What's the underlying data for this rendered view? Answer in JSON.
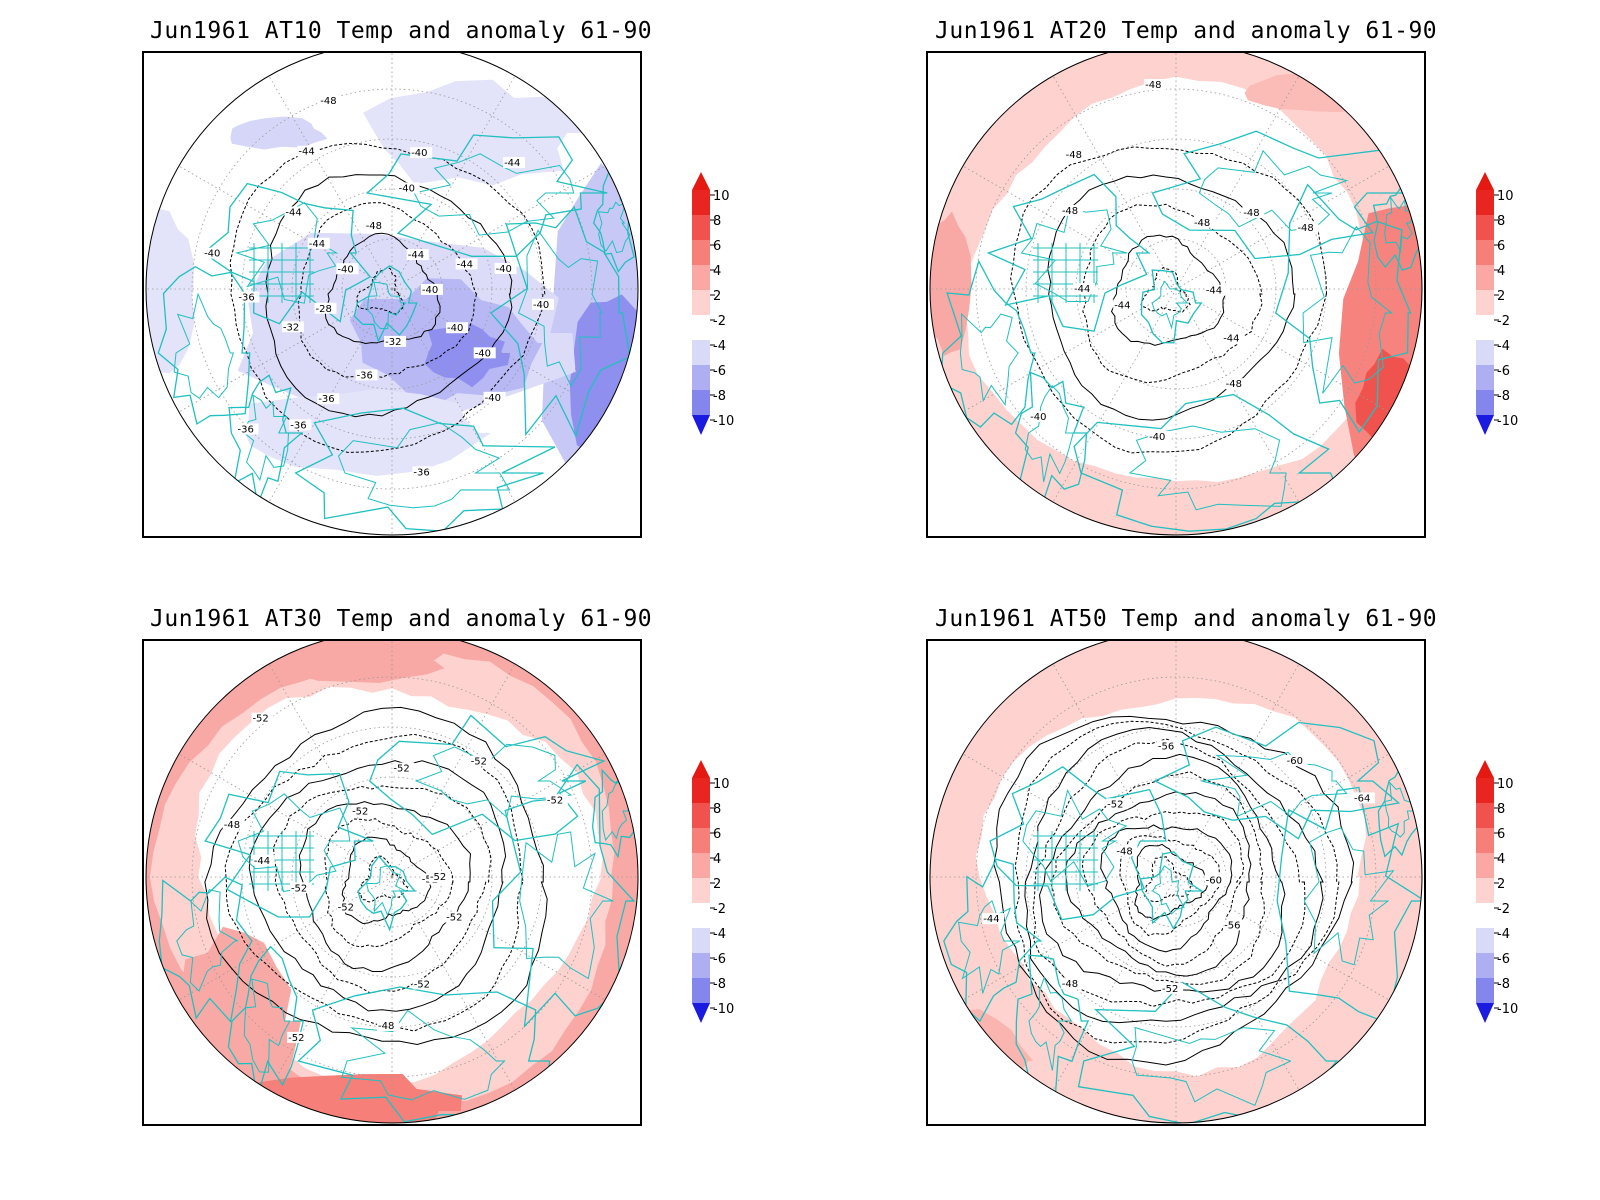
{
  "panels": [
    {
      "title": "Jun1961 AT10 Temp and anomaly 61-90",
      "contour_labels": [
        "-40",
        "-40",
        "-40",
        "-40",
        "-36",
        "-32",
        "-36",
        "-36",
        "-36",
        "-36",
        "-28",
        "-32",
        "-36",
        "-40",
        "-40",
        "-44",
        "-44",
        "-44",
        "-48",
        "-48",
        "-40",
        "-40",
        "-44",
        "-44",
        "-44",
        "-40",
        "-40"
      ],
      "shading": "cool"
    },
    {
      "title": "Jun1961 AT20 Temp and anomaly 61-90",
      "contour_labels": [
        "-44",
        "-44",
        "-48",
        "-40",
        "-40",
        "-44",
        "-44",
        "-48",
        "-48",
        "-48",
        "-48",
        "-48",
        "-48"
      ],
      "shading": "warm-edge"
    },
    {
      "title": "Jun1961 AT30 Temp and anomaly 61-90",
      "contour_labels": [
        "-52",
        "-52",
        "-52",
        "-48",
        "-52",
        "-52",
        "-52",
        "-44",
        "-48",
        "-52",
        "-52",
        "-52",
        "-52",
        "-52",
        "-52"
      ],
      "shading": "warm-ring"
    },
    {
      "title": "Jun1961 AT50 Temp and anomaly 61-90",
      "contour_labels": [
        "-60",
        "-56",
        "-52",
        "-48",
        "-44",
        "-48",
        "-52",
        "-56",
        "-60",
        "-64"
      ],
      "shading": "warm-ring-light"
    }
  ],
  "colorbar": {
    "labels": [
      "10",
      "8",
      "6",
      "4",
      "2",
      "-2",
      "-4",
      "-6",
      "-8",
      "-10"
    ],
    "colors": [
      "#e8251f",
      "#f0534d",
      "#f77f7a",
      "#fba8a4",
      "#fdd2cf",
      "#ffffff",
      "#d9d9f8",
      "#aeaef3",
      "#8585ee",
      "#5c5ce9",
      "#2a2ae4"
    ]
  },
  "colors": {
    "coast": "#20c0c0",
    "contour": "#000000",
    "grid": "#999999"
  }
}
